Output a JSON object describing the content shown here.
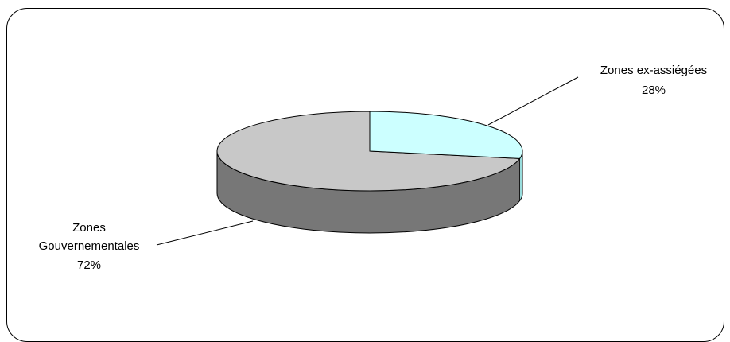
{
  "chart_data": {
    "type": "pie",
    "style": "3d",
    "slices": [
      {
        "label": "Zones ex-assiégées",
        "value": 28,
        "percent_label": "28%",
        "color": "#ccffff"
      },
      {
        "label": "Zones Gouvernementales",
        "value": 72,
        "percent_label": "72%",
        "color": "#c8c8c8"
      }
    ],
    "side_color": "#777777",
    "legend": "none"
  },
  "labels": {
    "ex_assiegees": {
      "line1": "Zones ex-assiégées",
      "line2": "28%"
    },
    "gouvernementales": {
      "line1": "Zones",
      "line2": "Gouvernementales",
      "line3": "72%"
    }
  }
}
